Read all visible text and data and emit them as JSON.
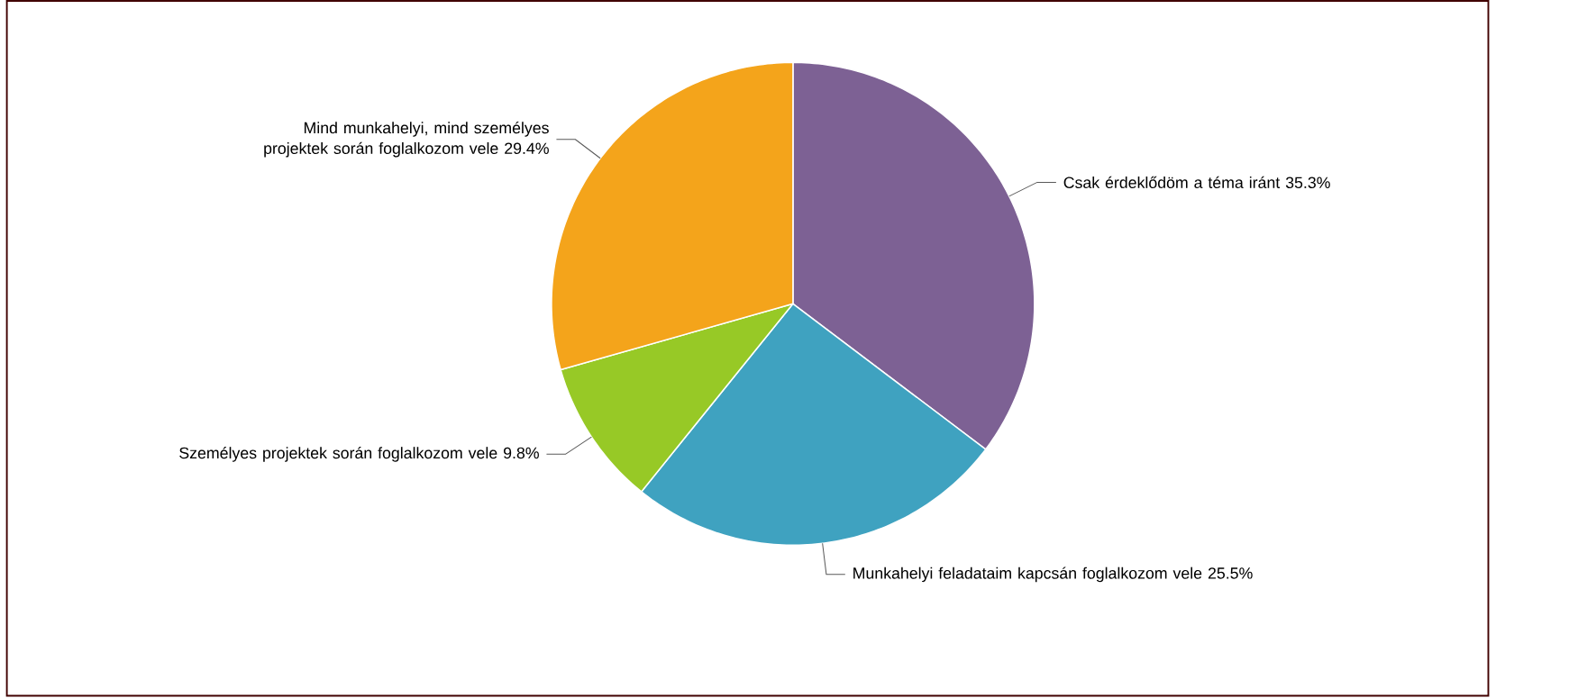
{
  "chart_data": {
    "type": "pie",
    "categories": [
      "Csak érdeklődöm a téma iránt",
      "Munkahelyi feladataim kapcsán foglalkozom vele",
      "Személyes projektek során foglalkozom vele",
      "Mind munkahelyi, mind személyes projektek során foglalkozom vele"
    ],
    "values": [
      35.3,
      25.5,
      9.8,
      29.4
    ],
    "colors": [
      "#7d6194",
      "#3fa2c0",
      "#97c926",
      "#f4a41b"
    ],
    "value_labels": [
      "35.3%",
      "25.5%",
      "9.8%",
      "29.4%"
    ]
  }
}
